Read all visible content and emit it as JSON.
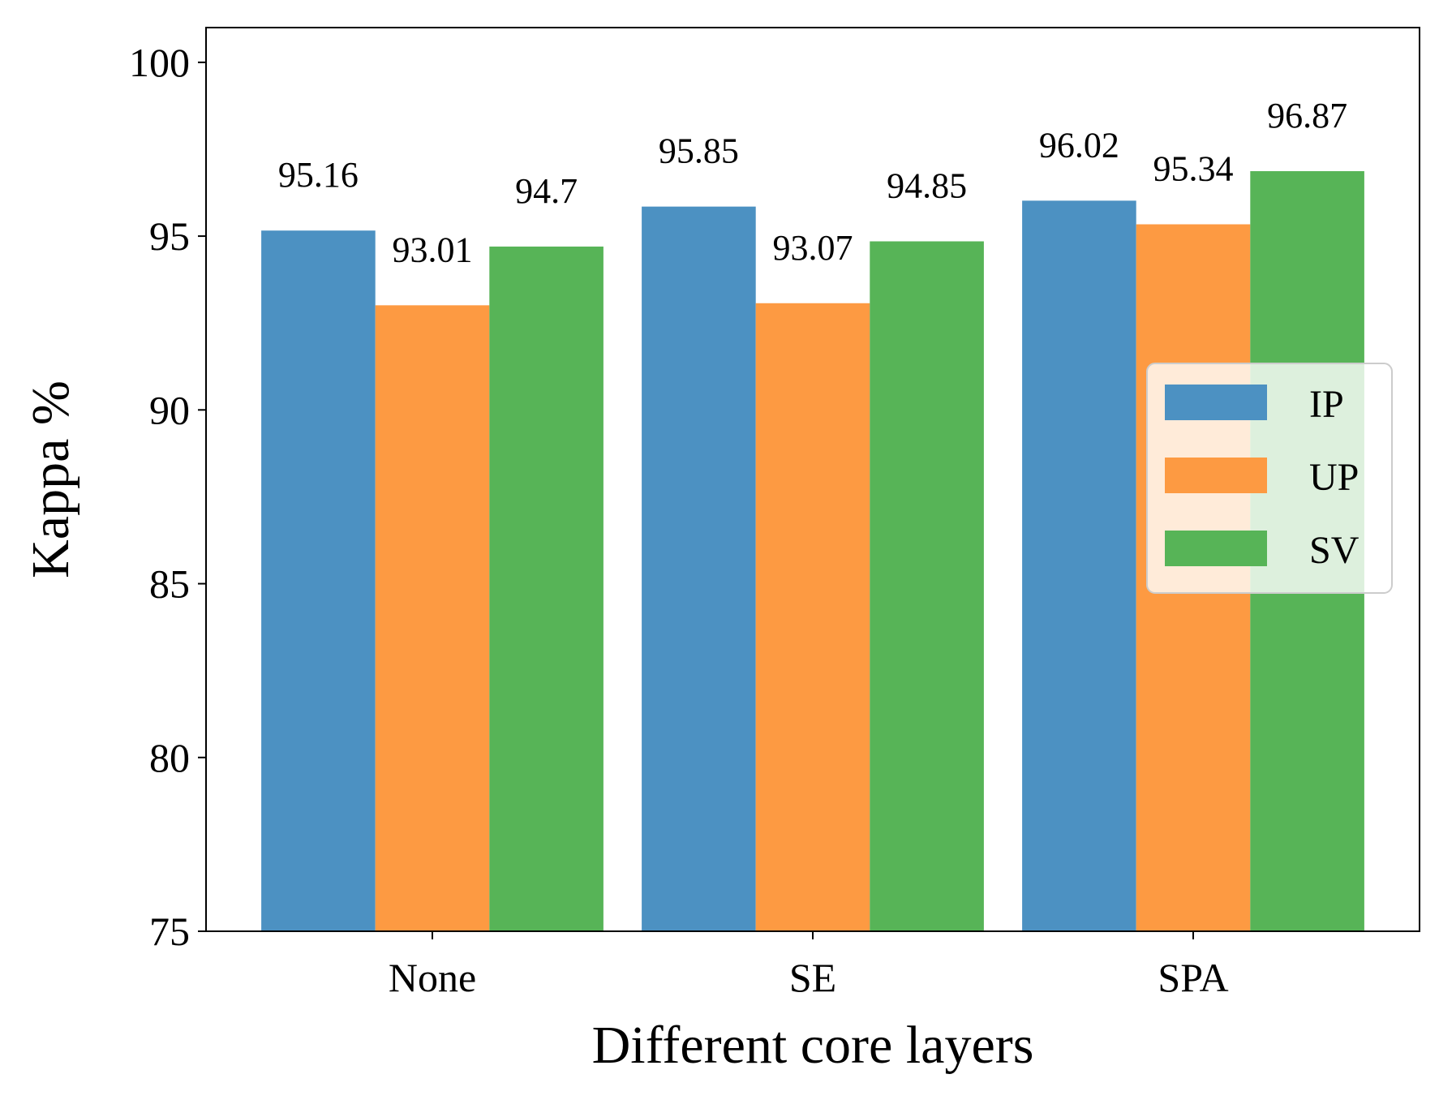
{
  "chart_data": {
    "type": "bar",
    "categories": [
      "None",
      "SE",
      "SPA"
    ],
    "series": [
      {
        "name": "IP",
        "values": [
          95.16,
          95.85,
          96.02
        ],
        "color": "#4c91c2"
      },
      {
        "name": "UP",
        "values": [
          93.01,
          93.07,
          95.34
        ],
        "color": "#fd9a42"
      },
      {
        "name": "SV",
        "values": [
          94.7,
          94.85,
          96.87
        ],
        "color": "#57b457"
      }
    ],
    "data_labels": [
      [
        "95.16",
        "95.85",
        "96.02"
      ],
      [
        "93.01",
        "93.07",
        "95.34"
      ],
      [
        "94.7",
        "94.85",
        "96.87"
      ]
    ],
    "xlabel": "Different core layers",
    "ylabel": "Kappa %",
    "ylim": [
      75,
      101
    ],
    "yticks": [
      75,
      80,
      85,
      90,
      95,
      100
    ],
    "legend_position": "center-right",
    "grid": false
  }
}
